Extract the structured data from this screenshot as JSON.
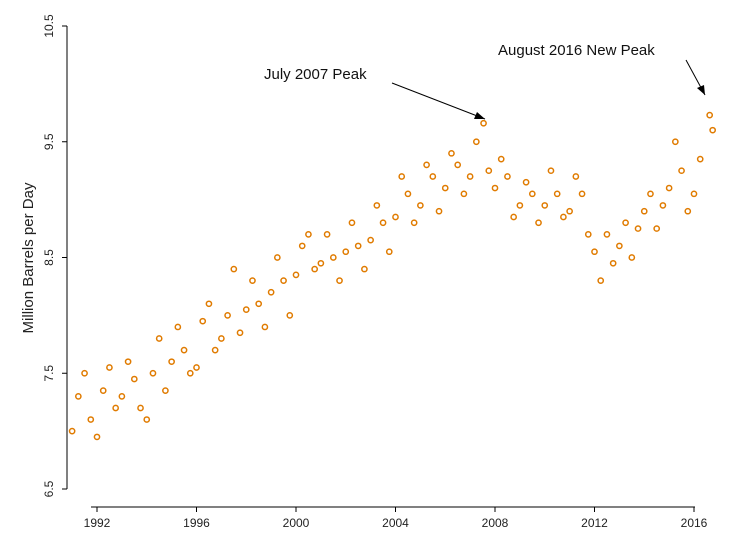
{
  "chart_data": {
    "type": "scatter",
    "title": "",
    "xlabel": "",
    "ylabel": "Million Barrels per Day",
    "xlim": [
      1990.9,
      2017.5
    ],
    "ylim": [
      6.5,
      10.5
    ],
    "x_ticks": [
      1992,
      1996,
      2000,
      2004,
      2008,
      2012,
      2016
    ],
    "y_ticks": [
      6.5,
      7.5,
      8.5,
      9.5,
      10.5
    ],
    "grid": false,
    "marker_color": "#e07b00",
    "annotations": [
      {
        "text": "July 2007 Peak",
        "x": 2007.54,
        "y": 9.66
      },
      {
        "text": "August 2016 New Peak",
        "x": 2016.63,
        "y": 9.73
      }
    ],
    "x": [
      1991.0,
      1991.25,
      1991.5,
      1991.75,
      1992.0,
      1992.25,
      1992.5,
      1992.75,
      1993.0,
      1993.25,
      1993.5,
      1993.75,
      1994.0,
      1994.25,
      1994.5,
      1994.75,
      1995.0,
      1995.25,
      1995.5,
      1995.75,
      1996.0,
      1996.25,
      1996.5,
      1996.75,
      1997.0,
      1997.25,
      1997.5,
      1997.75,
      1998.0,
      1998.25,
      1998.5,
      1998.75,
      1999.0,
      1999.25,
      1999.5,
      1999.75,
      2000.0,
      2000.25,
      2000.5,
      2000.75,
      2001.0,
      2001.25,
      2001.5,
      2001.75,
      2002.0,
      2002.25,
      2002.5,
      2002.75,
      2003.0,
      2003.25,
      2003.5,
      2003.75,
      2004.0,
      2004.25,
      2004.5,
      2004.75,
      2005.0,
      2005.25,
      2005.5,
      2005.75,
      2006.0,
      2006.25,
      2006.5,
      2006.75,
      2007.0,
      2007.25,
      2007.54,
      2007.75,
      2008.0,
      2008.25,
      2008.5,
      2008.75,
      2009.0,
      2009.25,
      2009.5,
      2009.75,
      2010.0,
      2010.25,
      2010.5,
      2010.75,
      2011.0,
      2011.25,
      2011.5,
      2011.75,
      2012.0,
      2012.25,
      2012.5,
      2012.75,
      2013.0,
      2013.25,
      2013.5,
      2013.75,
      2014.0,
      2014.25,
      2014.5,
      2014.75,
      2015.0,
      2015.25,
      2015.5,
      2015.75,
      2016.0,
      2016.25,
      2016.63,
      2016.75
    ],
    "y": [
      7.0,
      7.3,
      7.5,
      7.1,
      6.95,
      7.35,
      7.55,
      7.2,
      7.3,
      7.6,
      7.45,
      7.2,
      7.1,
      7.5,
      7.8,
      7.35,
      7.6,
      7.9,
      7.7,
      7.5,
      7.55,
      7.95,
      8.1,
      7.7,
      7.8,
      8.0,
      8.4,
      7.85,
      8.05,
      8.3,
      8.1,
      7.9,
      8.2,
      8.5,
      8.3,
      8.0,
      8.35,
      8.6,
      8.7,
      8.4,
      8.45,
      8.7,
      8.5,
      8.3,
      8.55,
      8.8,
      8.6,
      8.4,
      8.65,
      8.95,
      8.8,
      8.55,
      8.85,
      9.2,
      9.05,
      8.8,
      8.95,
      9.3,
      9.2,
      8.9,
      9.1,
      9.4,
      9.3,
      9.05,
      9.2,
      9.5,
      9.66,
      9.25,
      9.1,
      9.35,
      9.2,
      8.85,
      8.95,
      9.15,
      9.05,
      8.8,
      8.95,
      9.25,
      9.05,
      8.85,
      8.9,
      9.2,
      9.05,
      8.7,
      8.55,
      8.3,
      8.7,
      8.45,
      8.6,
      8.8,
      8.5,
      8.75,
      8.9,
      9.05,
      8.75,
      8.95,
      9.1,
      9.5,
      9.25,
      8.9,
      9.05,
      9.35,
      9.73,
      9.6
    ]
  }
}
